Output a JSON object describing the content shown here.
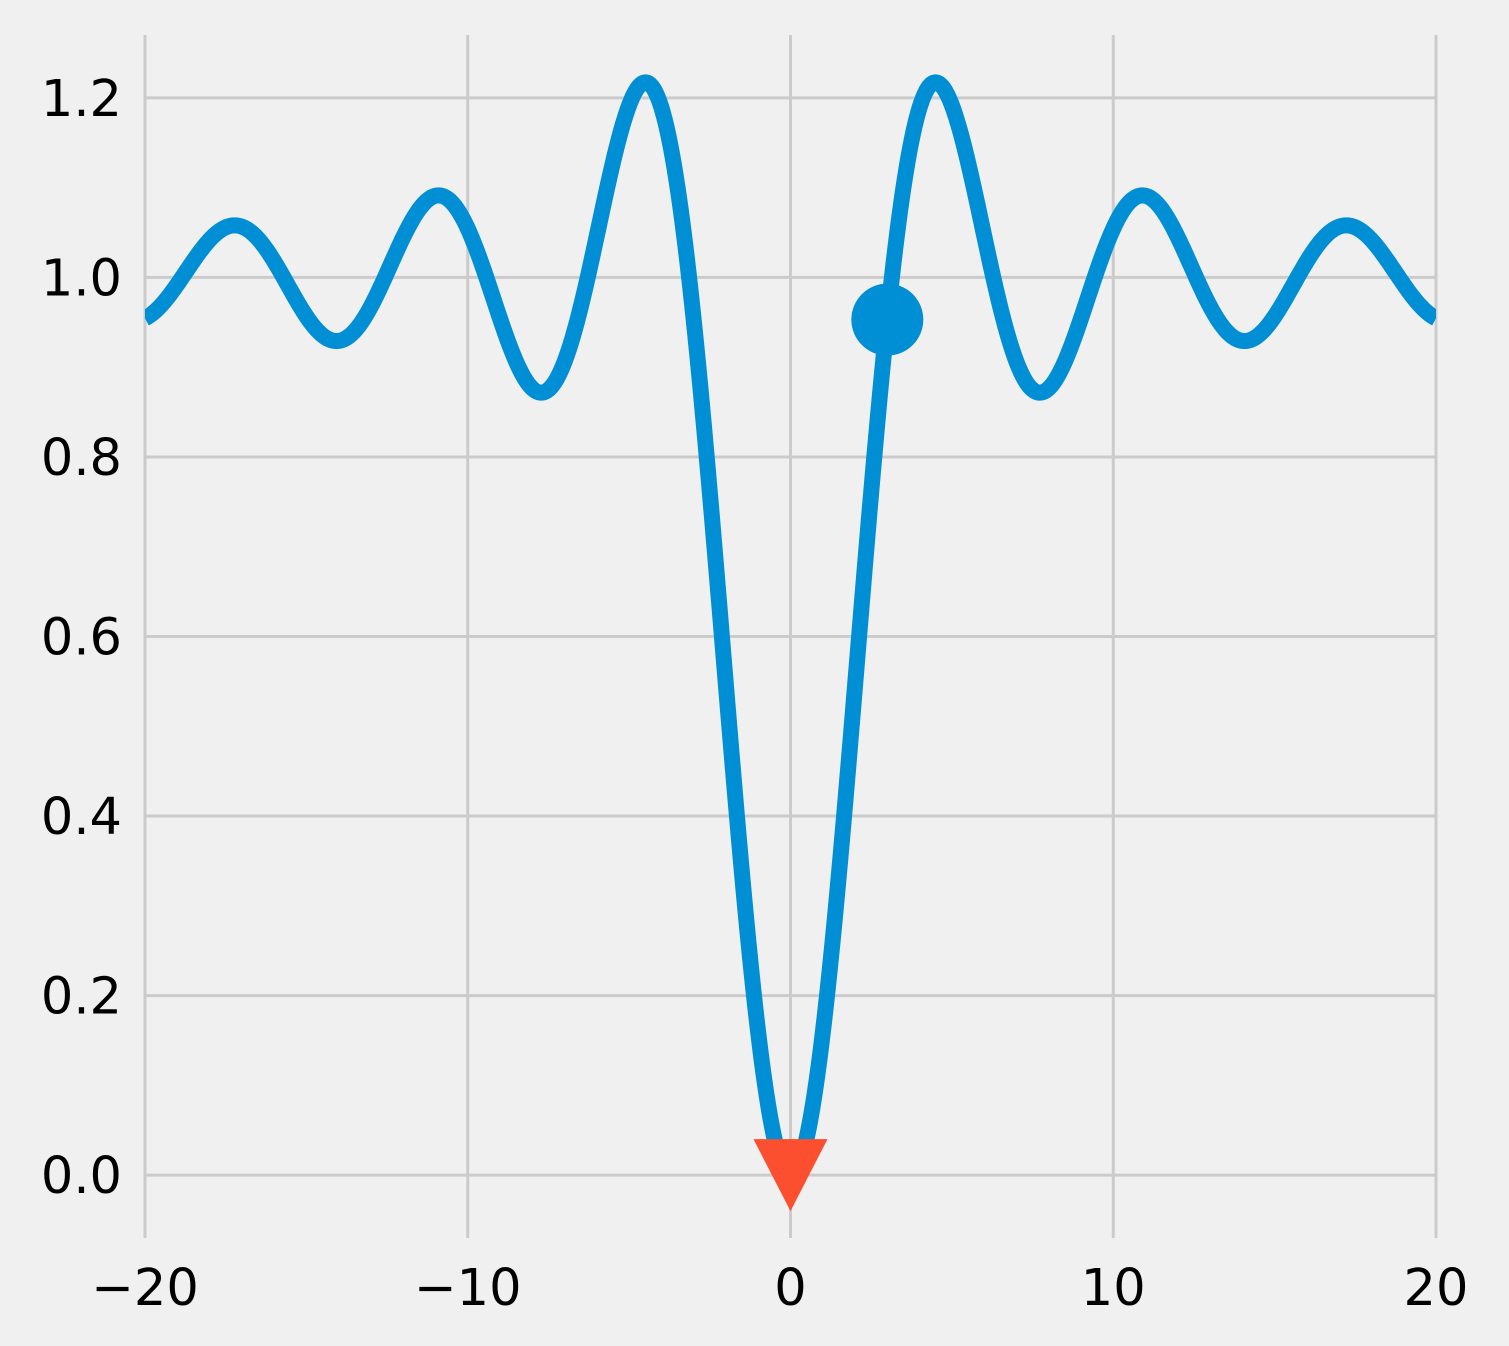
{
  "chart_data": {
    "type": "line",
    "title": "",
    "xlabel": "",
    "ylabel": "",
    "xlim": [
      -20,
      20
    ],
    "ylim": [
      -0.07,
      1.27
    ],
    "grid": true,
    "x_ticks": [
      -20,
      -10,
      0,
      10,
      20
    ],
    "x_tick_labels": [
      "−20",
      "−10",
      "0",
      "10",
      "20"
    ],
    "y_ticks": [
      0.0,
      0.2,
      0.4,
      0.6,
      0.8,
      1.0,
      1.2
    ],
    "y_tick_labels": [
      "0.0",
      "0.2",
      "0.4",
      "0.6",
      "0.8",
      "1.0",
      "1.2"
    ],
    "series": [
      {
        "function": "1 - sin(x)/x",
        "x_range": [
          -20,
          20
        ],
        "color": "#008fd5",
        "sample_points": [
          {
            "x": -17.2,
            "y": 1.058
          },
          {
            "x": -14.1,
            "y": 0.93
          },
          {
            "x": -10.9,
            "y": 1.091
          },
          {
            "x": -7.7,
            "y": 0.872
          },
          {
            "x": -4.5,
            "y": 1.217
          },
          {
            "x": 0,
            "y": 0.0
          },
          {
            "x": 4.5,
            "y": 1.217
          },
          {
            "x": 7.7,
            "y": 0.872
          },
          {
            "x": 10.9,
            "y": 1.091
          },
          {
            "x": 14.1,
            "y": 0.93
          },
          {
            "x": 17.2,
            "y": 1.058
          }
        ]
      }
    ],
    "markers": [
      {
        "shape": "circle",
        "x": 3.0,
        "y": 0.953,
        "color": "#008fd5"
      },
      {
        "shape": "triangle-down",
        "x": 0.0,
        "y": 0.0,
        "color": "#fc4f30"
      }
    ],
    "colors": {
      "background": "#f0f0f0",
      "grid": "#cbcbcb",
      "line": "#008fd5",
      "accent": "#fc4f30"
    }
  }
}
